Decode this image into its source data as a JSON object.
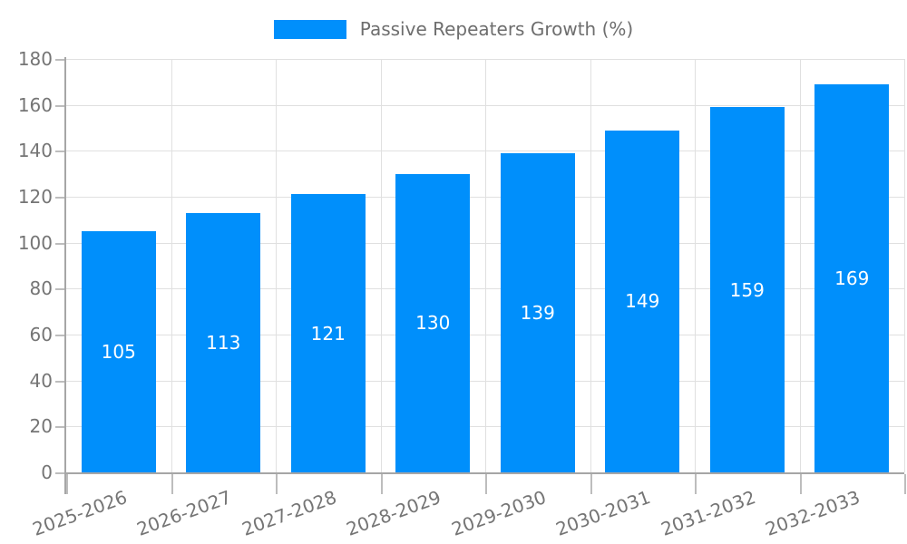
{
  "legend": {
    "label": "Passive Repeaters Growth (%)"
  },
  "chart_data": {
    "type": "bar",
    "title": "Passive Repeaters Growth (%)",
    "categories": [
      "2025-2026",
      "2026-2027",
      "2027-2028",
      "2028-2029",
      "2029-2030",
      "2030-2031",
      "2031-2032",
      "2032-2033"
    ],
    "values": [
      105,
      113,
      121,
      130,
      139,
      149,
      159,
      169
    ],
    "xlabel": "",
    "ylabel": "",
    "ylim": [
      0,
      180
    ],
    "ytick_step": 20,
    "grid": true,
    "legend_position": "top",
    "colors": {
      "bar": "#008FFB",
      "bar_value_label": "#ffffff",
      "axis_line": "#a6a6a6",
      "gridline": "#e0e0e0",
      "tick": "#bdbdbd",
      "axis_text": "#757575",
      "legend_text": "#6e6e6e",
      "background": "#ffffff"
    }
  }
}
